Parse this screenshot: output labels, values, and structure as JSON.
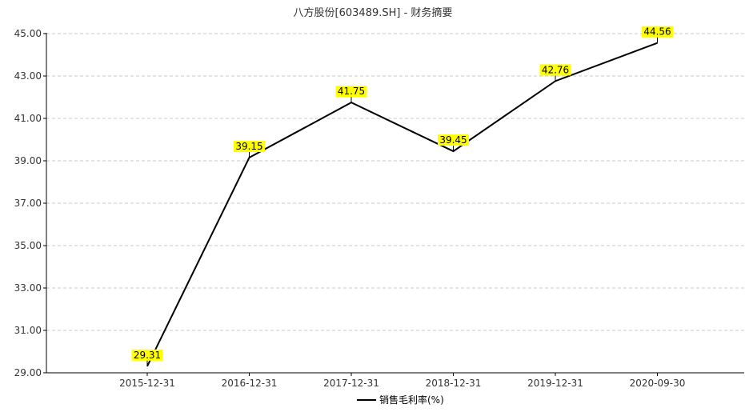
{
  "chart_data": {
    "type": "line",
    "title": "八方股份[603489.SH] - 财务摘要",
    "categories": [
      "2015-12-31",
      "2016-12-31",
      "2017-12-31",
      "2018-12-31",
      "2019-12-31",
      "2020-09-30"
    ],
    "series": [
      {
        "name": "销售毛利率(%)",
        "values": [
          29.31,
          39.15,
          41.75,
          39.45,
          42.76,
          44.56
        ],
        "color": "#000000"
      }
    ],
    "data_labels": [
      "29.31",
      "39.15",
      "41.75",
      "39.45",
      "42.76",
      "44.56"
    ],
    "y_ticks": [
      "29.00",
      "31.00",
      "33.00",
      "35.00",
      "37.00",
      "39.00",
      "41.00",
      "43.00",
      "45.00"
    ],
    "ylim": [
      29,
      45
    ],
    "grid": true,
    "legend_position": "bottom-center",
    "label_color": "#ffff00"
  }
}
